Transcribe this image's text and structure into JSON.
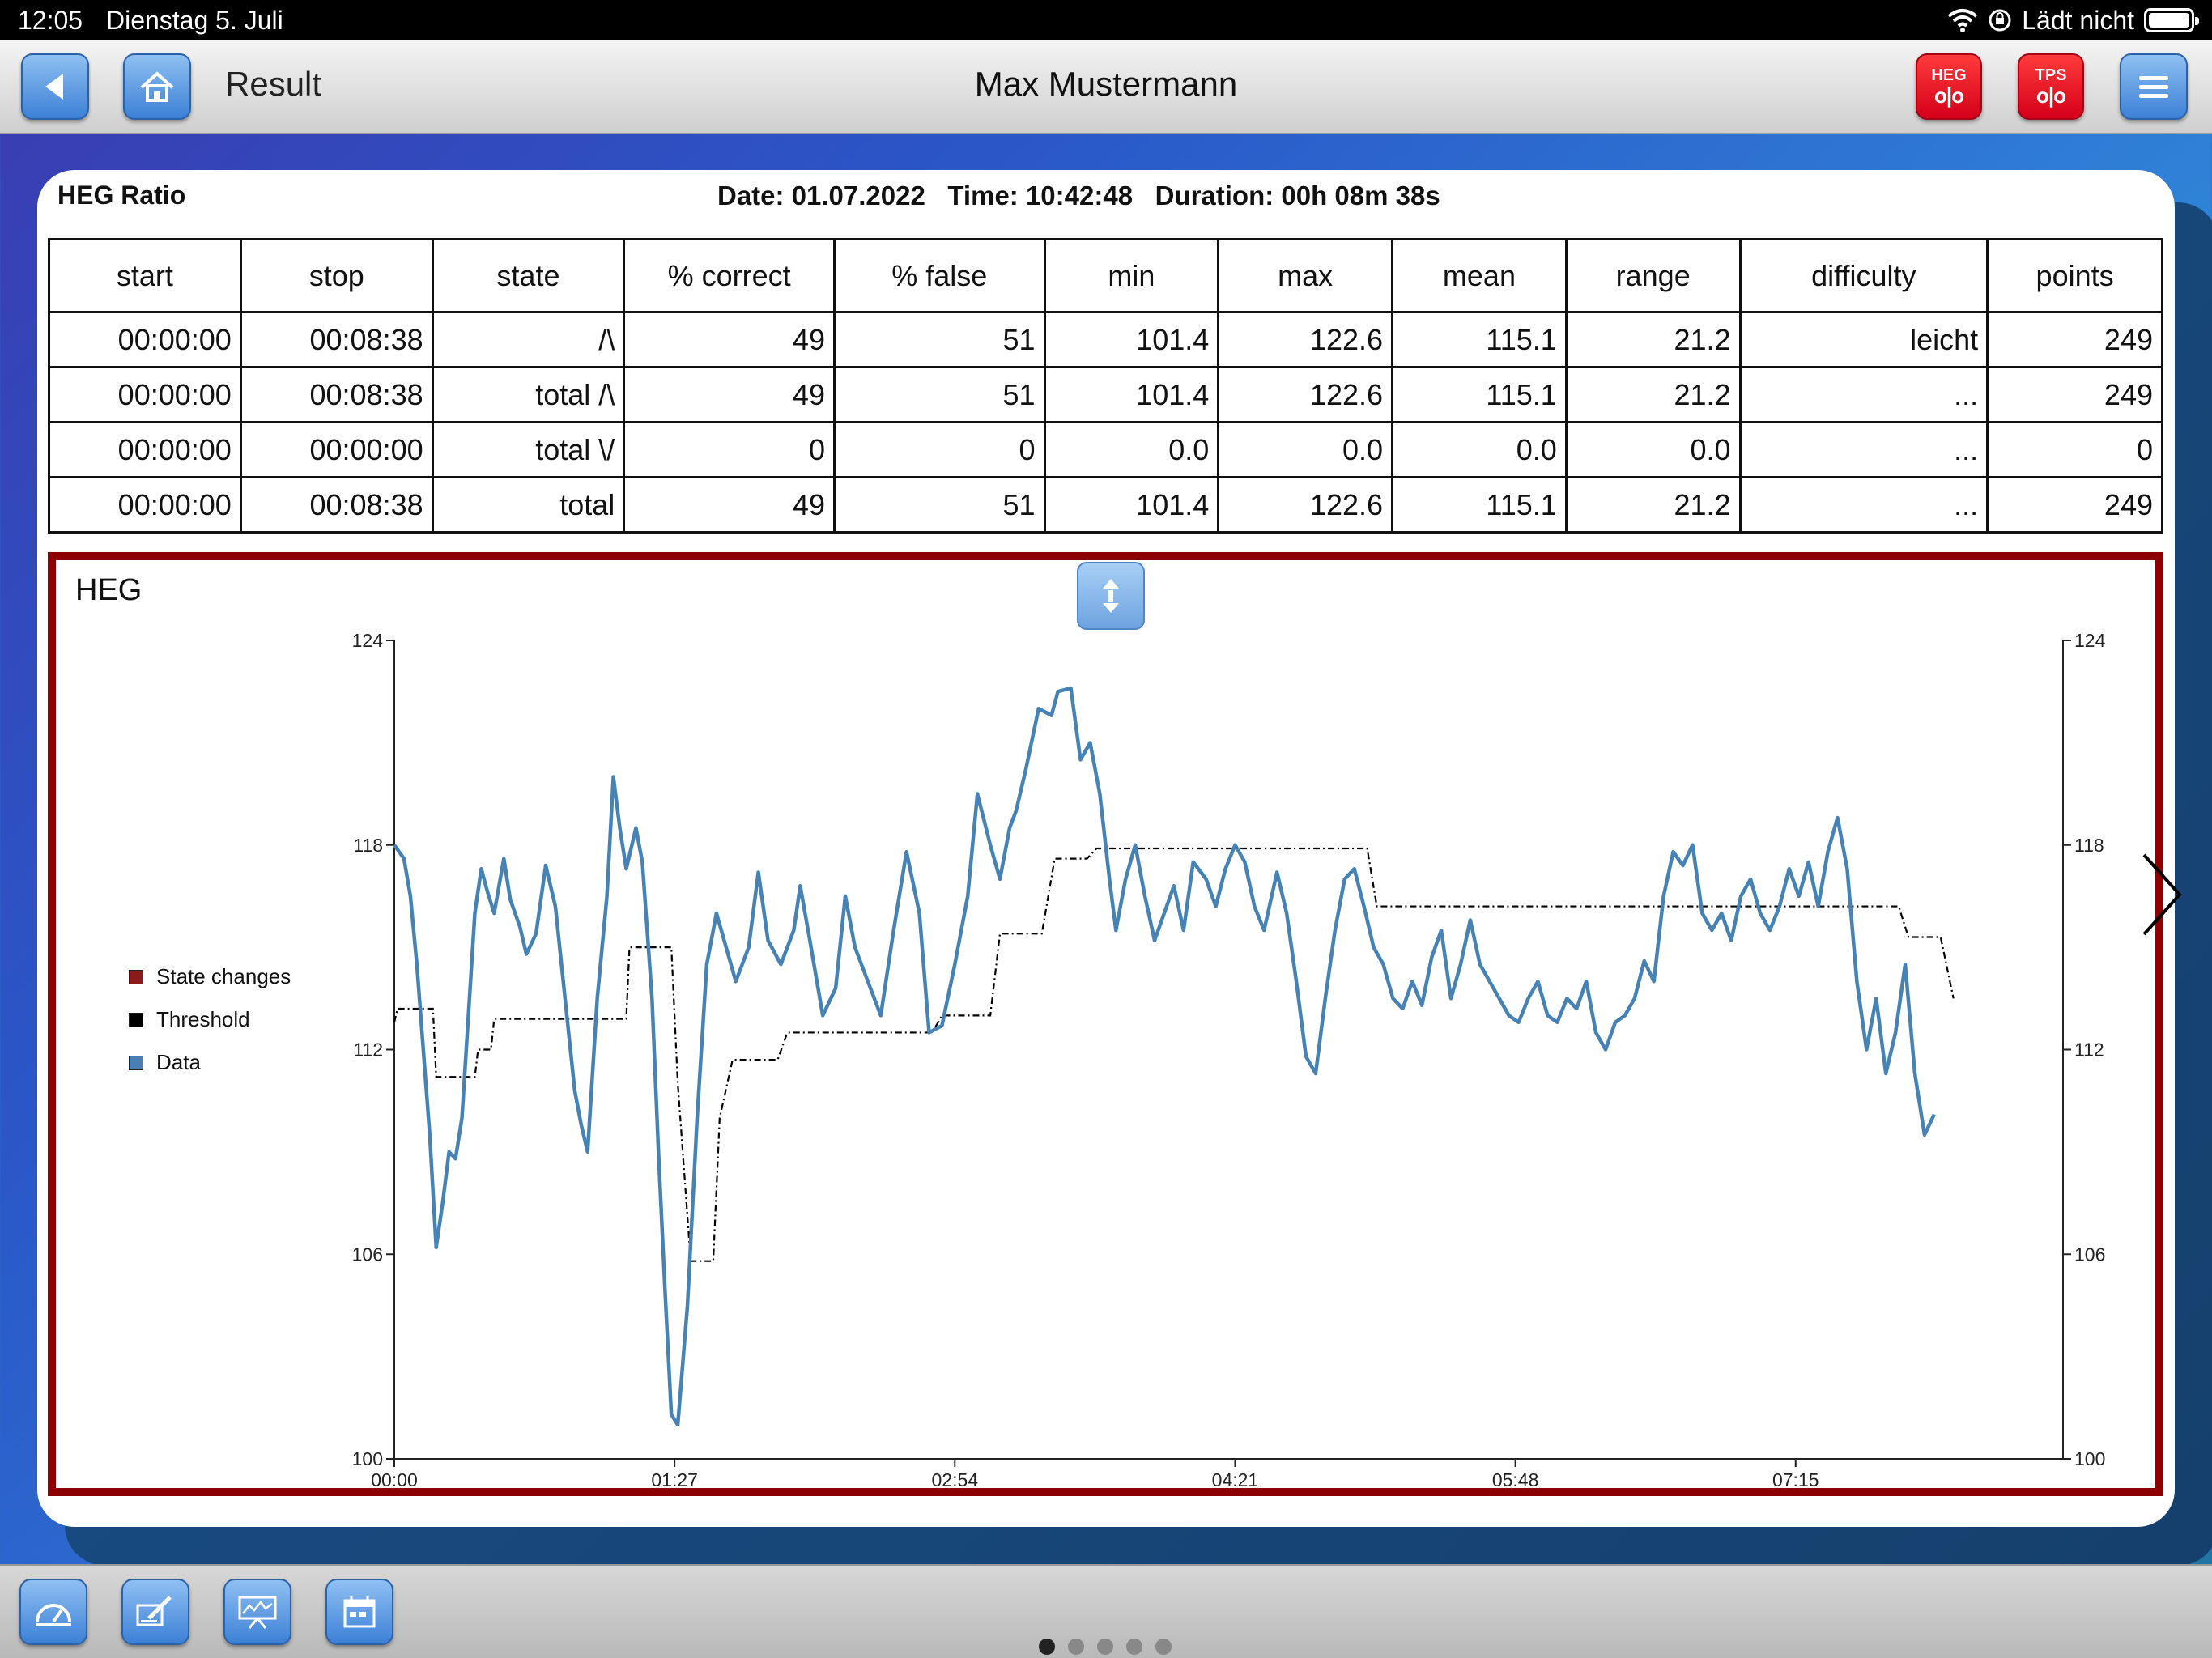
{
  "status_bar": {
    "time": "12:05",
    "date": "Dienstag 5. Juli",
    "charging": "Lädt nicht",
    "icons": [
      "wifi-icon",
      "orientation-lock-icon",
      "battery-icon"
    ]
  },
  "nav": {
    "section": "Result",
    "title": "Max Mustermann",
    "heg_label": "HEG",
    "tps_label": "TPS",
    "heg_glyph": "o|o",
    "tps_glyph": "o|o",
    "icons": [
      "back-arrow-icon",
      "home-icon",
      "menu-icon"
    ]
  },
  "session": {
    "title": "HEG Ratio",
    "date": "Date: 01.07.2022",
    "time": "Time: 10:42:48",
    "duration": "Duration: 00h 08m 38s"
  },
  "table": {
    "headers": [
      "start",
      "stop",
      "state",
      "% correct",
      "% false",
      "min",
      "max",
      "mean",
      "range",
      "difficulty",
      "points"
    ],
    "rows": [
      [
        "00:00:00",
        "00:08:38",
        "/\\",
        "49",
        "51",
        "101.4",
        "122.6",
        "115.1",
        "21.2",
        "leicht",
        "249"
      ],
      [
        "00:00:00",
        "00:08:38",
        "total /\\",
        "49",
        "51",
        "101.4",
        "122.6",
        "115.1",
        "21.2",
        "...",
        "249"
      ],
      [
        "00:00:00",
        "00:00:00",
        "total \\/",
        "0",
        "0",
        "0.0",
        "0.0",
        "0.0",
        "0.0",
        "...",
        "0"
      ],
      [
        "00:00:00",
        "00:08:38",
        "total",
        "49",
        "51",
        "101.4",
        "122.6",
        "115.1",
        "21.2",
        "...",
        "249"
      ]
    ]
  },
  "chart_data": {
    "type": "line",
    "title": "HEG",
    "x_unit": "seconds",
    "xlim": [
      0,
      518
    ],
    "ylim": [
      100,
      124
    ],
    "x_ticks": [
      "00:00",
      "01:27",
      "02:54",
      "04:21",
      "05:48",
      "07:15"
    ],
    "y_ticks": [
      "100",
      "106",
      "112",
      "118",
      "124"
    ],
    "legend": [
      {
        "name": "State changes",
        "color": "#8b1a1a"
      },
      {
        "name": "Threshold",
        "color": "#000000"
      },
      {
        "name": "Data",
        "color": "#4a7fb5"
      }
    ],
    "legend_position": "left",
    "series": [
      {
        "name": "Data",
        "color": "#4682b4",
        "points": [
          [
            0,
            118
          ],
          [
            3,
            117.6
          ],
          [
            5,
            116.5
          ],
          [
            7,
            114.5
          ],
          [
            9,
            112
          ],
          [
            11,
            109.5
          ],
          [
            13,
            106.2
          ],
          [
            15,
            107.5
          ],
          [
            17,
            109
          ],
          [
            19,
            108.8
          ],
          [
            21,
            110
          ],
          [
            23,
            113
          ],
          [
            25,
            116
          ],
          [
            27,
            117.3
          ],
          [
            29,
            116.6
          ],
          [
            31,
            116
          ],
          [
            34,
            117.6
          ],
          [
            36,
            116.4
          ],
          [
            39,
            115.6
          ],
          [
            41,
            114.8
          ],
          [
            44,
            115.4
          ],
          [
            47,
            117.4
          ],
          [
            50,
            116.2
          ],
          [
            53,
            113.5
          ],
          [
            56,
            110.8
          ],
          [
            58,
            109.8
          ],
          [
            60,
            109
          ],
          [
            63,
            113.5
          ],
          [
            66,
            116.5
          ],
          [
            68,
            120
          ],
          [
            70,
            118.5
          ],
          [
            72,
            117.3
          ],
          [
            75,
            118.5
          ],
          [
            77,
            117.5
          ],
          [
            80,
            113.5
          ],
          [
            82,
            109
          ],
          [
            84,
            105
          ],
          [
            86,
            101.3
          ],
          [
            88,
            101
          ],
          [
            91,
            104.5
          ],
          [
            94,
            110
          ],
          [
            97,
            114.5
          ],
          [
            100,
            116
          ],
          [
            103,
            115
          ],
          [
            106,
            114
          ],
          [
            110,
            115
          ],
          [
            113,
            117.2
          ],
          [
            116,
            115.2
          ],
          [
            120,
            114.5
          ],
          [
            124,
            115.5
          ],
          [
            126,
            116.8
          ],
          [
            129,
            115.2
          ],
          [
            133,
            113
          ],
          [
            137,
            113.8
          ],
          [
            140,
            116.5
          ],
          [
            143,
            115
          ],
          [
            147,
            114
          ],
          [
            151,
            113
          ],
          [
            155,
            115.5
          ],
          [
            159,
            117.8
          ],
          [
            163,
            116
          ],
          [
            166,
            112.5
          ],
          [
            170,
            112.7
          ],
          [
            174,
            114.5
          ],
          [
            178,
            116.5
          ],
          [
            181,
            119.5
          ],
          [
            185,
            118
          ],
          [
            188,
            117
          ],
          [
            191,
            118.5
          ],
          [
            193,
            119
          ],
          [
            196,
            120.2
          ],
          [
            200,
            122
          ],
          [
            204,
            121.8
          ],
          [
            206,
            122.5
          ],
          [
            210,
            122.6
          ],
          [
            213,
            120.5
          ],
          [
            216,
            121
          ],
          [
            219,
            119.5
          ],
          [
            222,
            117
          ],
          [
            224,
            115.5
          ],
          [
            227,
            117
          ],
          [
            230,
            118
          ],
          [
            233,
            116.5
          ],
          [
            236,
            115.2
          ],
          [
            239,
            116
          ],
          [
            242,
            116.8
          ],
          [
            245,
            115.5
          ],
          [
            248,
            117.5
          ],
          [
            252,
            117
          ],
          [
            255,
            116.2
          ],
          [
            258,
            117.3
          ],
          [
            261,
            118
          ],
          [
            264,
            117.5
          ],
          [
            267,
            116.2
          ],
          [
            270,
            115.5
          ],
          [
            274,
            117.2
          ],
          [
            277,
            116
          ],
          [
            280,
            114
          ],
          [
            283,
            111.8
          ],
          [
            286,
            111.3
          ],
          [
            289,
            113.5
          ],
          [
            292,
            115.5
          ],
          [
            295,
            117
          ],
          [
            298,
            117.3
          ],
          [
            301,
            116.2
          ],
          [
            304,
            115
          ],
          [
            307,
            114.5
          ],
          [
            310,
            113.5
          ],
          [
            313,
            113.2
          ],
          [
            316,
            114
          ],
          [
            319,
            113.3
          ],
          [
            322,
            114.7
          ],
          [
            325,
            115.5
          ],
          [
            328,
            113.5
          ],
          [
            331,
            114.5
          ],
          [
            334,
            115.8
          ],
          [
            337,
            114.5
          ],
          [
            340,
            114
          ],
          [
            343,
            113.5
          ],
          [
            346,
            113
          ],
          [
            349,
            112.8
          ],
          [
            352,
            113.5
          ],
          [
            355,
            114
          ],
          [
            358,
            113
          ],
          [
            361,
            112.8
          ],
          [
            364,
            113.5
          ],
          [
            367,
            113.2
          ],
          [
            370,
            114
          ],
          [
            373,
            112.5
          ],
          [
            376,
            112
          ],
          [
            379,
            112.8
          ],
          [
            382,
            113
          ],
          [
            385,
            113.5
          ],
          [
            388,
            114.6
          ],
          [
            391,
            114
          ],
          [
            394,
            116.5
          ],
          [
            397,
            117.8
          ],
          [
            400,
            117.4
          ],
          [
            403,
            118
          ],
          [
            406,
            116
          ],
          [
            409,
            115.5
          ],
          [
            412,
            116
          ],
          [
            415,
            115.2
          ],
          [
            418,
            116.5
          ],
          [
            421,
            117
          ],
          [
            424,
            116
          ],
          [
            427,
            115.5
          ],
          [
            430,
            116.2
          ],
          [
            433,
            117.3
          ],
          [
            436,
            116.5
          ],
          [
            439,
            117.5
          ],
          [
            442,
            116.2
          ],
          [
            445,
            117.8
          ],
          [
            448,
            118.8
          ],
          [
            451,
            117.3
          ],
          [
            454,
            114
          ],
          [
            457,
            112
          ],
          [
            460,
            113.5
          ],
          [
            463,
            111.3
          ],
          [
            466,
            112.5
          ],
          [
            469,
            114.5
          ],
          [
            472,
            111.3
          ],
          [
            475,
            109.5
          ],
          [
            478,
            110.1
          ]
        ]
      },
      {
        "name": "Threshold",
        "color": "#000000",
        "points": [
          [
            0,
            112.8
          ],
          [
            1,
            113.2
          ],
          [
            12,
            113.2
          ],
          [
            13,
            111.2
          ],
          [
            25,
            111.2
          ],
          [
            26,
            112
          ],
          [
            30,
            112
          ],
          [
            31,
            112.9
          ],
          [
            72,
            112.9
          ],
          [
            73,
            115
          ],
          [
            86,
            115
          ],
          [
            88,
            111
          ],
          [
            92,
            105.8
          ],
          [
            99,
            105.8
          ],
          [
            101,
            110
          ],
          [
            105,
            111.7
          ],
          [
            119,
            111.7
          ],
          [
            122,
            112.5
          ],
          [
            167,
            112.5
          ],
          [
            170,
            113
          ],
          [
            185,
            113
          ],
          [
            188,
            115.4
          ],
          [
            201,
            115.4
          ],
          [
            205,
            117.6
          ],
          [
            215,
            117.6
          ],
          [
            218,
            117.9
          ],
          [
            302,
            117.9
          ],
          [
            305,
            116.2
          ],
          [
            467,
            116.2
          ],
          [
            470,
            115.3
          ],
          [
            480,
            115.3
          ],
          [
            484,
            113.5
          ]
        ]
      }
    ]
  },
  "tab_bar": {
    "icons": [
      "dashboard-icon",
      "edit-icon",
      "presentation-chart-icon",
      "calendar-icon"
    ],
    "pages": 5,
    "active_page": 0
  }
}
